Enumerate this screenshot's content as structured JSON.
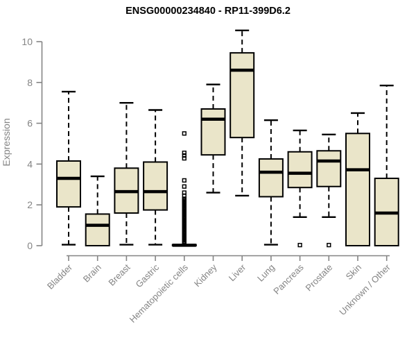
{
  "chart_data": {
    "type": "boxplot",
    "title": "ENSG00000234840 - RP11-399D6.2",
    "ylabel": "Expression",
    "ylim": [
      0,
      10
    ],
    "yticks": [
      0,
      2,
      4,
      6,
      8,
      10
    ],
    "grid": false,
    "legend": "none",
    "colors": {
      "box_fill": "#EAE5C9",
      "box_stroke": "#000000",
      "median": "#000000",
      "axis": "#848484",
      "tick_label": "#848484",
      "title": "#000000",
      "background": "#FFFFFF"
    },
    "categories": [
      "Bladder",
      "Brain",
      "Breast",
      "Gastric",
      "Hematopoietic cells",
      "Kidney",
      "Liver",
      "Lung",
      "Pancreas",
      "Prostate",
      "Skin",
      "Unknown / Other"
    ],
    "boxes": [
      {
        "category": "Bladder",
        "whisker_low": 0.05,
        "q1": 1.9,
        "median": 3.3,
        "q3": 4.15,
        "whisker_high": 7.55,
        "outliers": []
      },
      {
        "category": "Brain",
        "whisker_low": 0.0,
        "q1": 0.0,
        "median": 1.0,
        "q3": 1.55,
        "whisker_high": 3.4,
        "outliers": []
      },
      {
        "category": "Breast",
        "whisker_low": 0.05,
        "q1": 1.6,
        "median": 2.65,
        "q3": 3.8,
        "whisker_high": 7.0,
        "outliers": []
      },
      {
        "category": "Gastric",
        "whisker_low": 0.05,
        "q1": 1.75,
        "median": 2.65,
        "q3": 4.1,
        "whisker_high": 6.65,
        "outliers": []
      },
      {
        "category": "Hematopoietic cells",
        "whisker_low": 0.0,
        "q1": 0.0,
        "median": 0.02,
        "q3": 0.05,
        "whisker_high": 0.05,
        "outliers": [
          5.5,
          4.55,
          4.42,
          4.28,
          3.2,
          2.9,
          2.6,
          2.45,
          2.3,
          2.24,
          2.18,
          2.12,
          2.06,
          2.0,
          1.93,
          1.87,
          1.81,
          1.75,
          1.68,
          1.62,
          1.56,
          1.5,
          1.43,
          1.37,
          1.31,
          1.25,
          1.18,
          1.12,
          1.06,
          1.0,
          0.93,
          0.87,
          0.81,
          0.75,
          0.68,
          0.62,
          0.56,
          0.5,
          0.43,
          0.37,
          0.31,
          0.25,
          0.19,
          0.12
        ]
      },
      {
        "category": "Kidney",
        "whisker_low": 2.6,
        "q1": 4.45,
        "median": 6.2,
        "q3": 6.7,
        "whisker_high": 7.9,
        "outliers": []
      },
      {
        "category": "Liver",
        "whisker_low": 2.45,
        "q1": 5.3,
        "median": 8.6,
        "q3": 9.45,
        "whisker_high": 10.55,
        "outliers": []
      },
      {
        "category": "Lung",
        "whisker_low": 0.05,
        "q1": 2.4,
        "median": 3.6,
        "q3": 4.25,
        "whisker_high": 6.15,
        "outliers": []
      },
      {
        "category": "Pancreas",
        "whisker_low": 1.4,
        "q1": 2.85,
        "median": 3.55,
        "q3": 4.6,
        "whisker_high": 5.65,
        "outliers": [
          0.03
        ]
      },
      {
        "category": "Prostate",
        "whisker_low": 1.4,
        "q1": 2.9,
        "median": 4.15,
        "q3": 4.65,
        "whisker_high": 5.45,
        "outliers": [
          0.03
        ]
      },
      {
        "category": "Skin",
        "whisker_low": 0.0,
        "q1": 0.0,
        "median": 3.72,
        "q3": 5.5,
        "whisker_high": 6.5,
        "outliers": []
      },
      {
        "category": "Unknown / Other",
        "whisker_low": 0.0,
        "q1": 0.0,
        "median": 1.6,
        "q3": 3.3,
        "whisker_high": 7.85,
        "outliers": []
      }
    ]
  }
}
